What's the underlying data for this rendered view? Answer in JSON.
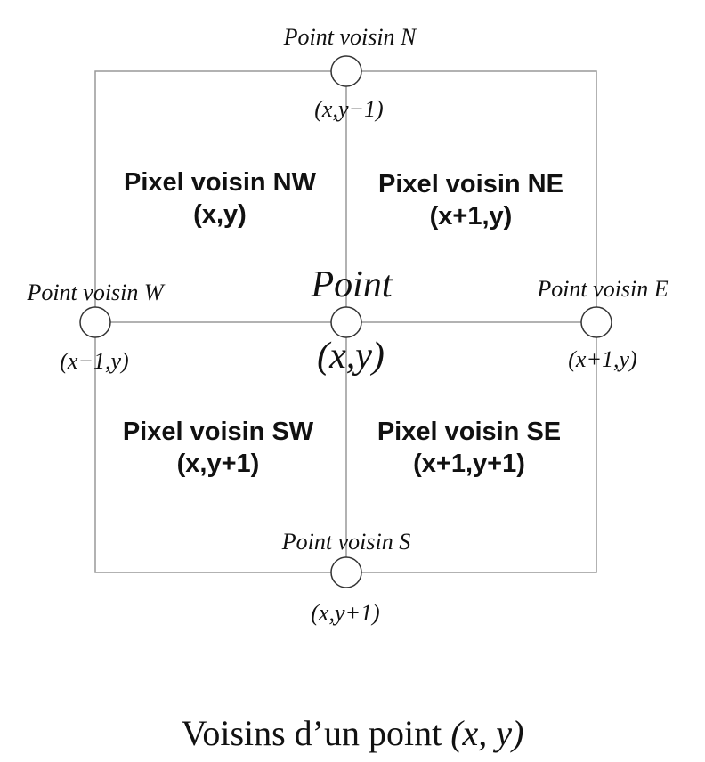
{
  "points": {
    "n": {
      "label": "Point voisin N",
      "coord": "(x,y−1)"
    },
    "w": {
      "label": "Point voisin W",
      "coord": "(x−1,y)"
    },
    "e": {
      "label": "Point voisin E",
      "coord": "(x+1,y)"
    },
    "s": {
      "label": "Point voisin S",
      "coord": "(x,y+1)"
    },
    "center": {
      "label": "Point",
      "coord": "(x,y)"
    }
  },
  "pixels": {
    "nw": {
      "label": "Pixel voisin NW",
      "coord": "(x,y)"
    },
    "ne": {
      "label": "Pixel voisin NE",
      "coord": "(x+1,y)"
    },
    "sw": {
      "label": "Pixel voisin SW",
      "coord": "(x,y+1)"
    },
    "se": {
      "label": "Pixel voisin SE",
      "coord": "(x+1,y+1)"
    }
  },
  "caption": {
    "text": "Voisins d’un point",
    "math": "(x, y)"
  }
}
